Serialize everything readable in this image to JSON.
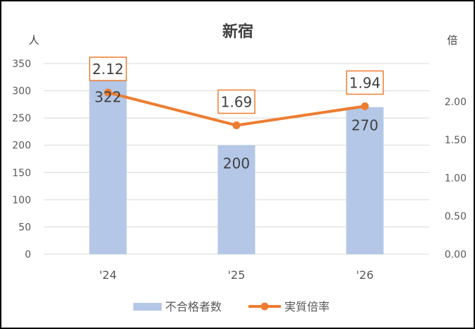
{
  "chart_data": {
    "type": "bar+line",
    "title": "新宿",
    "categories": [
      "'24",
      "'25",
      "'26"
    ],
    "left_axis": {
      "unit_label": "人",
      "min": 0,
      "max": 350,
      "ticks": [
        "0",
        "50",
        "100",
        "150",
        "200",
        "250",
        "300",
        "350"
      ]
    },
    "right_axis": {
      "unit_label": "倍",
      "min": 0,
      "max": 2.5,
      "ticks": [
        "0.00",
        "0.50",
        "1.00",
        "1.50",
        "2.00"
      ]
    },
    "grid": true,
    "legend_position": "bottom",
    "series": [
      {
        "name": "不合格者数",
        "type": "bar",
        "axis": "left",
        "color": "#b4c7e7",
        "values": [
          322,
          200,
          270
        ],
        "labels": [
          "322",
          "200",
          "270"
        ]
      },
      {
        "name": "実質倍率",
        "type": "line",
        "axis": "right",
        "color": "#ed7d31",
        "values": [
          2.12,
          1.69,
          1.94
        ],
        "labels": [
          "2.12",
          "1.69",
          "1.94"
        ]
      }
    ]
  }
}
